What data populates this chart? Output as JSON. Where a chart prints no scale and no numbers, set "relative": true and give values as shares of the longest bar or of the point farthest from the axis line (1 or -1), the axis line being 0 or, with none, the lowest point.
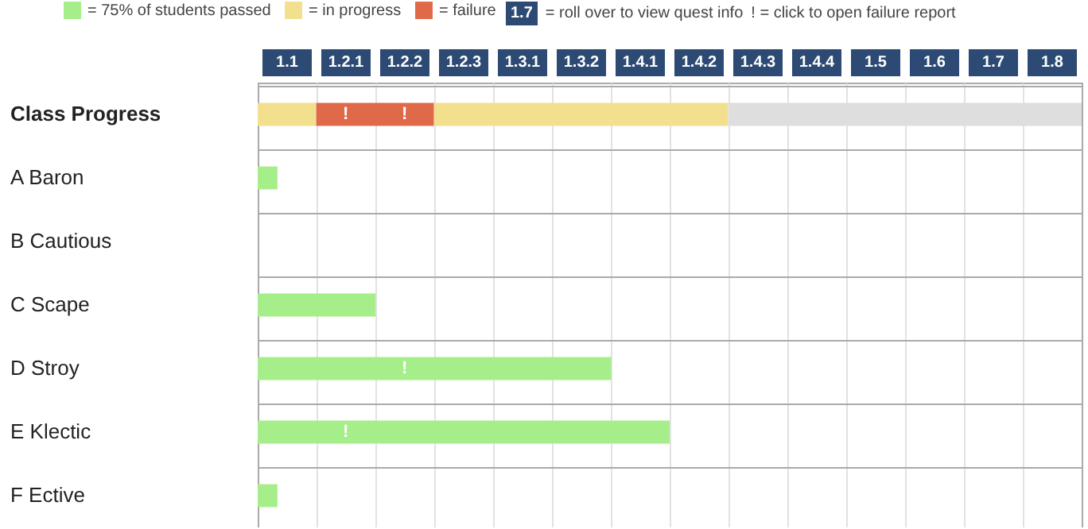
{
  "chart_data": {
    "type": "bar",
    "orientation": "horizontal",
    "stacked": true,
    "relative": true,
    "categories": [
      "Class Progress",
      "A Baron",
      "B Cautious",
      "C Scape",
      "D Stroy",
      "E Klectic",
      "F Ective"
    ],
    "series": [
      {
        "name": "= 75% of students passed",
        "color": "#a6ee8a",
        "values": [
          null,
          0.024,
          null,
          0.143,
          0.429,
          0.5,
          0.024
        ]
      },
      {
        "name": "= in progress",
        "color": "#f3e08e",
        "values": [
          0.071,
          null,
          null,
          null,
          null,
          null,
          null
        ]
      },
      {
        "name": "= failure",
        "color": "#e0694a",
        "values": [
          0.143,
          null,
          null,
          null,
          null,
          null,
          null
        ]
      },
      {
        "color": "#f3e08e",
        "values": [
          0.357,
          null,
          null,
          null,
          null,
          null,
          null
        ]
      },
      {
        "color": "#dedede",
        "values": [
          0.429,
          null,
          null,
          null,
          null,
          null,
          null
        ]
      }
    ],
    "grid": true,
    "legend": "top left",
    "annotations": [
      "1.7",
      "= roll over to view quest info",
      "! = click to open failure report",
      "1.1",
      "1.2.1",
      "1.2.2",
      "1.2.3",
      "1.3.1",
      "1.3.2",
      "1.4.1",
      "1.4.2",
      "1.4.3",
      "1.4.4",
      "1.5",
      "1.6",
      "1.7",
      "1.8",
      "!",
      "!",
      "!",
      "!"
    ]
  }
}
